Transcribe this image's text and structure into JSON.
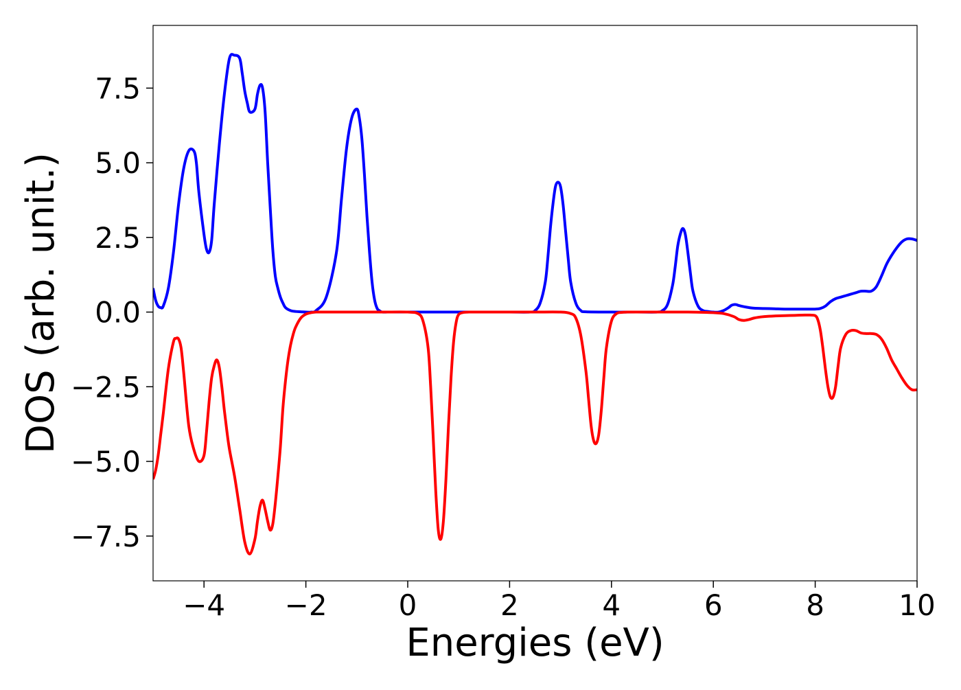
{
  "chart_data": {
    "type": "line",
    "title": "",
    "xlabel": "Energies (eV)",
    "ylabel": "DOS (arb. unit.)",
    "xlim": [
      -5,
      10
    ],
    "ylim": [
      -9.0,
      9.6
    ],
    "xticks": [
      -4,
      -2,
      0,
      2,
      4,
      6,
      8,
      10
    ],
    "xtick_labels": [
      "−4",
      "−2",
      "0",
      "2",
      "4",
      "6",
      "8",
      "10"
    ],
    "yticks": [
      -7.5,
      -5.0,
      -2.5,
      0.0,
      2.5,
      5.0,
      7.5
    ],
    "ytick_labels": [
      "−7.5",
      "−5.0",
      "−2.5",
      "0.0",
      "2.5",
      "5.0",
      "7.5"
    ],
    "grid": false,
    "legend": "none",
    "series": [
      {
        "color": "#0000ff",
        "x": [
          -5.0,
          -4.95,
          -4.9,
          -4.85,
          -4.8,
          -4.7,
          -4.6,
          -4.5,
          -4.4,
          -4.3,
          -4.2,
          -4.15,
          -4.1,
          -4.0,
          -3.95,
          -3.9,
          -3.85,
          -3.8,
          -3.7,
          -3.6,
          -3.5,
          -3.4,
          -3.3,
          -3.25,
          -3.2,
          -3.15,
          -3.1,
          -3.0,
          -2.95,
          -2.9,
          -2.85,
          -2.8,
          -2.75,
          -2.7,
          -2.65,
          -2.6,
          -2.55,
          -2.5,
          -2.45,
          -2.4,
          -2.3,
          -2.2,
          -2.1,
          -2.0,
          -1.9,
          -1.8,
          -1.6,
          -1.4,
          -1.3,
          -1.2,
          -1.1,
          -1.0,
          -0.95,
          -0.9,
          -0.85,
          -0.8,
          -0.75,
          -0.7,
          -0.65,
          -0.6,
          -0.55,
          -0.5,
          -0.4,
          -0.3,
          -0.2,
          -0.1,
          0.0,
          0.5,
          1.0,
          1.5,
          2.0,
          2.4,
          2.5,
          2.6,
          2.7,
          2.75,
          2.8,
          2.85,
          2.9,
          2.95,
          3.0,
          3.05,
          3.1,
          3.15,
          3.2,
          3.3,
          3.4,
          3.5,
          4.0,
          4.5,
          4.9,
          5.0,
          5.1,
          5.2,
          5.25,
          5.3,
          5.35,
          5.4,
          5.45,
          5.5,
          5.55,
          5.6,
          5.7,
          5.8,
          5.9,
          6.0,
          6.1,
          6.2,
          6.3,
          6.35,
          6.4,
          6.45,
          6.5,
          6.6,
          6.7,
          6.8,
          7.0,
          7.2,
          7.4,
          7.6,
          7.8,
          8.0,
          8.1,
          8.2,
          8.3,
          8.4,
          8.5,
          8.6,
          8.7,
          8.8,
          8.9,
          9.0,
          9.1,
          9.2,
          9.3,
          9.4,
          9.5,
          9.6,
          9.7,
          9.8,
          9.9,
          10.0
        ],
        "y": [
          0.8,
          0.4,
          0.2,
          0.15,
          0.2,
          0.8,
          2.0,
          3.6,
          4.8,
          5.4,
          5.4,
          5.0,
          4.0,
          2.6,
          2.1,
          2.0,
          2.4,
          3.6,
          5.6,
          7.3,
          8.5,
          8.6,
          8.5,
          8.0,
          7.4,
          7.0,
          6.7,
          6.8,
          7.3,
          7.6,
          7.5,
          6.7,
          5.0,
          3.5,
          2.1,
          1.2,
          0.8,
          0.5,
          0.3,
          0.15,
          0.05,
          0.02,
          0.01,
          0.0,
          0.0,
          0.05,
          0.5,
          2.0,
          3.8,
          5.5,
          6.5,
          6.8,
          6.5,
          5.8,
          4.6,
          3.2,
          2.0,
          1.0,
          0.4,
          0.12,
          0.04,
          0.0,
          0.0,
          0.0,
          0.0,
          0.0,
          0.0,
          0.0,
          0.0,
          0.0,
          0.0,
          0.0,
          0.05,
          0.3,
          1.0,
          1.8,
          2.8,
          3.6,
          4.2,
          4.35,
          4.2,
          3.6,
          2.7,
          1.8,
          1.0,
          0.3,
          0.05,
          0.01,
          0.0,
          0.0,
          0.0,
          0.05,
          0.25,
          0.9,
          1.5,
          2.2,
          2.6,
          2.8,
          2.6,
          2.0,
          1.3,
          0.7,
          0.2,
          0.05,
          0.02,
          0.0,
          0.0,
          0.05,
          0.15,
          0.22,
          0.25,
          0.25,
          0.22,
          0.18,
          0.15,
          0.13,
          0.12,
          0.11,
          0.1,
          0.1,
          0.1,
          0.1,
          0.12,
          0.2,
          0.35,
          0.45,
          0.5,
          0.55,
          0.6,
          0.65,
          0.7,
          0.7,
          0.7,
          0.85,
          1.2,
          1.6,
          1.9,
          2.15,
          2.35,
          2.45,
          2.45,
          2.4
        ]
      },
      {
        "color": "#ff0000",
        "x": [
          -5.0,
          -4.95,
          -4.9,
          -4.85,
          -4.8,
          -4.7,
          -4.6,
          -4.55,
          -4.5,
          -4.45,
          -4.4,
          -4.3,
          -4.2,
          -4.1,
          -4.0,
          -3.95,
          -3.9,
          -3.85,
          -3.8,
          -3.75,
          -3.7,
          -3.65,
          -3.6,
          -3.55,
          -3.5,
          -3.4,
          -3.3,
          -3.2,
          -3.1,
          -3.0,
          -2.95,
          -2.9,
          -2.85,
          -2.8,
          -2.75,
          -2.7,
          -2.65,
          -2.6,
          -2.55,
          -2.5,
          -2.45,
          -2.4,
          -2.35,
          -2.3,
          -2.25,
          -2.2,
          -2.1,
          -2.0,
          -1.9,
          -1.8,
          -1.7,
          -1.6,
          -1.5,
          -1.0,
          -0.5,
          0.0,
          0.2,
          0.3,
          0.4,
          0.45,
          0.5,
          0.55,
          0.6,
          0.65,
          0.7,
          0.75,
          0.8,
          0.85,
          0.9,
          0.95,
          1.0,
          1.1,
          1.2,
          1.3,
          1.5,
          2.0,
          2.5,
          3.0,
          3.2,
          3.3,
          3.4,
          3.5,
          3.55,
          3.6,
          3.65,
          3.7,
          3.75,
          3.8,
          3.85,
          3.9,
          4.0,
          4.1,
          4.2,
          4.3,
          4.5,
          5.0,
          5.5,
          6.0,
          6.2,
          6.4,
          6.5,
          6.6,
          6.7,
          6.8,
          6.9,
          7.0,
          7.2,
          7.4,
          7.6,
          7.8,
          7.9,
          8.0,
          8.05,
          8.1,
          8.15,
          8.2,
          8.25,
          8.3,
          8.35,
          8.4,
          8.45,
          8.5,
          8.6,
          8.7,
          8.8,
          8.9,
          9.0,
          9.1,
          9.2,
          9.3,
          9.4,
          9.5,
          9.6,
          9.7,
          9.8,
          9.9,
          10.0
        ],
        "y": [
          -5.6,
          -5.3,
          -4.8,
          -4.1,
          -3.4,
          -1.9,
          -1.0,
          -0.88,
          -0.9,
          -1.2,
          -2.0,
          -3.8,
          -4.6,
          -5.0,
          -4.8,
          -4.0,
          -3.0,
          -2.2,
          -1.8,
          -1.6,
          -1.85,
          -2.5,
          -3.3,
          -4.0,
          -4.6,
          -5.5,
          -6.6,
          -7.7,
          -8.1,
          -7.6,
          -7.0,
          -6.5,
          -6.3,
          -6.6,
          -7.0,
          -7.3,
          -7.1,
          -6.4,
          -5.5,
          -4.5,
          -3.2,
          -2.3,
          -1.6,
          -1.1,
          -0.75,
          -0.5,
          -0.2,
          -0.07,
          -0.02,
          0.0,
          0.0,
          0.0,
          0.0,
          0.0,
          0.0,
          0.0,
          -0.05,
          -0.3,
          -1.2,
          -2.5,
          -4.2,
          -6.0,
          -7.3,
          -7.6,
          -7.0,
          -5.6,
          -3.8,
          -2.2,
          -1.0,
          -0.35,
          -0.08,
          -0.01,
          0.0,
          0.0,
          0.0,
          0.0,
          0.0,
          0.0,
          -0.05,
          -0.2,
          -0.8,
          -2.0,
          -2.9,
          -3.8,
          -4.3,
          -4.4,
          -4.1,
          -3.3,
          -2.2,
          -1.2,
          -0.3,
          -0.05,
          -0.01,
          0.0,
          0.0,
          0.0,
          0.0,
          -0.02,
          -0.05,
          -0.15,
          -0.25,
          -0.28,
          -0.25,
          -0.2,
          -0.17,
          -0.15,
          -0.13,
          -0.12,
          -0.11,
          -0.1,
          -0.1,
          -0.12,
          -0.25,
          -0.6,
          -1.2,
          -1.9,
          -2.5,
          -2.85,
          -2.85,
          -2.5,
          -1.8,
          -1.2,
          -0.75,
          -0.62,
          -0.62,
          -0.7,
          -0.72,
          -0.72,
          -0.75,
          -0.9,
          -1.2,
          -1.6,
          -1.9,
          -2.2,
          -2.45,
          -2.6,
          -2.6
        ]
      }
    ]
  }
}
